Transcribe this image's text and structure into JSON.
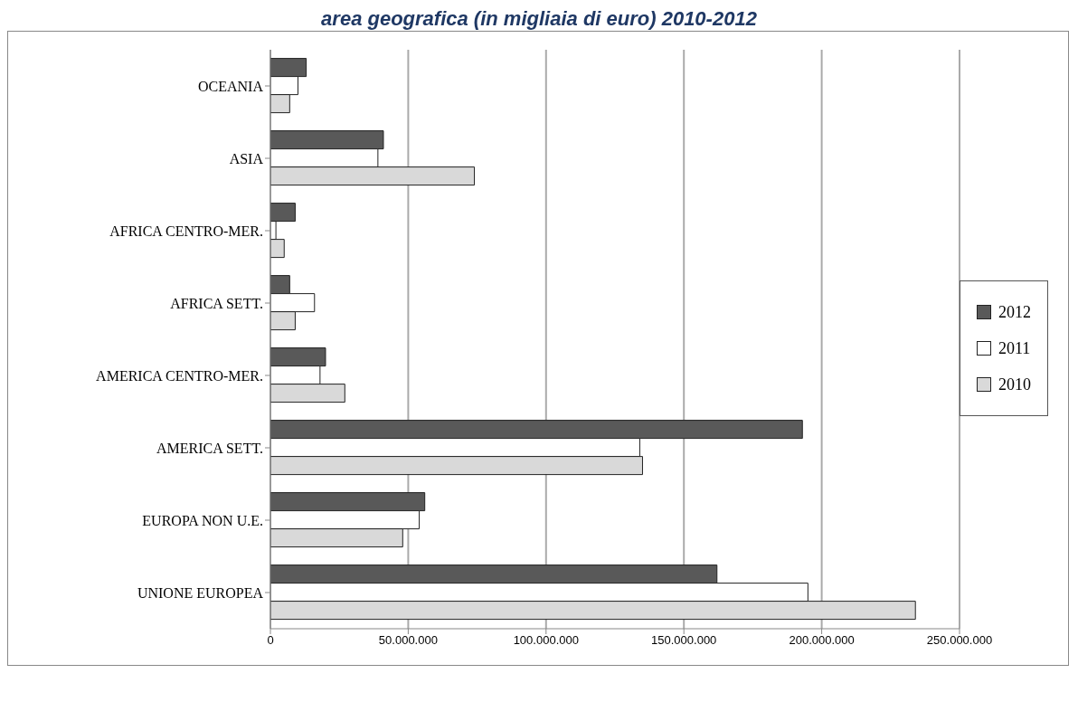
{
  "chart_data": {
    "type": "bar",
    "orientation": "horizontal",
    "title": "area geografica (in migliaia di euro) 2010-2012",
    "categories": [
      "OCEANIA",
      "ASIA",
      "AFRICA CENTRO-MER.",
      "AFRICA SETT.",
      "AMERICA CENTRO-MER.",
      "AMERICA SETT.",
      "EUROPA NON U.E.",
      "UNIONE EUROPEA"
    ],
    "series": [
      {
        "name": "2012",
        "color": "#595959",
        "values": [
          13000000,
          41000000,
          9000000,
          7000000,
          20000000,
          193000000,
          56000000,
          162000000
        ]
      },
      {
        "name": "2011",
        "color": "#ffffff",
        "values": [
          10000000,
          39000000,
          2000000,
          16000000,
          18000000,
          134000000,
          54000000,
          195000000
        ]
      },
      {
        "name": "2010",
        "color": "#d9d9d9",
        "values": [
          7000000,
          74000000,
          5000000,
          9000000,
          27000000,
          135000000,
          48000000,
          234000000
        ]
      }
    ],
    "xlim": [
      0,
      250000000
    ],
    "xticks": [
      0,
      {
        "value": 50000000,
        "label": "50.000.000"
      },
      {
        "value": 100000000,
        "label": "100.000.000"
      },
      {
        "value": 150000000,
        "label": "150.000.000"
      },
      {
        "value": 200000000,
        "label": "200.000.000"
      },
      {
        "value": 250000000,
        "label": "250.000.000"
      }
    ],
    "grid": "x",
    "legend": "right"
  }
}
